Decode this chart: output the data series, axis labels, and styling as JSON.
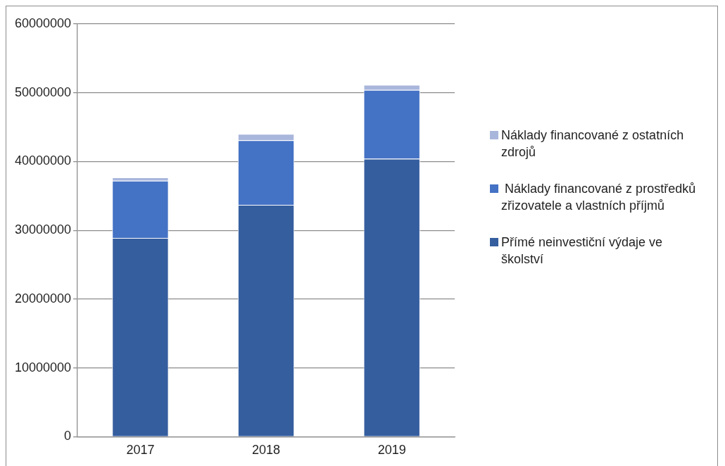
{
  "chart_data": {
    "type": "bar",
    "stacked": true,
    "categories": [
      "2017",
      "2018",
      "2019"
    ],
    "series": [
      {
        "name": "Přímé neinvestiční výdaje ve školství",
        "color": "#355e9f",
        "values": [
          28900000,
          33700000,
          40400000
        ]
      },
      {
        "name": " Náklady financované z prostředků zřizovatele a vlastních příjmů",
        "color": "#4472c4",
        "values": [
          8300000,
          9400000,
          10000000
        ]
      },
      {
        "name": "Náklady financované z ostatních zdrojů",
        "color": "#a9b6dc",
        "values": [
          500000,
          900000,
          750000
        ]
      }
    ],
    "ylim": [
      0,
      60000000
    ],
    "yticks": [
      0,
      10000000,
      20000000,
      30000000,
      40000000,
      50000000,
      60000000
    ],
    "grid": "y",
    "legend": "right"
  }
}
